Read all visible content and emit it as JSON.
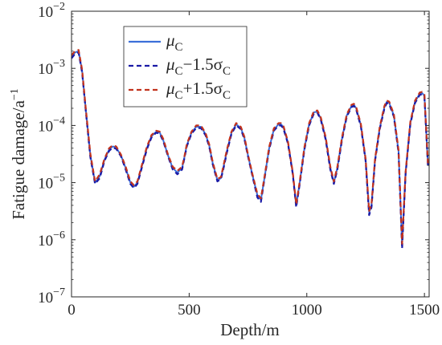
{
  "chart_data": {
    "type": "line",
    "xlabel": "Depth/m",
    "ylabel": "Fatigue damage/a",
    "ylabel_sup": "−1",
    "xlim": [
      0,
      1520
    ],
    "ylim": [
      1e-07,
      0.01
    ],
    "yscale": "log",
    "xticks": [
      0,
      500,
      1000,
      1500
    ],
    "xtick_labels": [
      "0",
      "500",
      "1000",
      "1500"
    ],
    "yticks": [
      1e-07,
      1e-06,
      1e-05,
      0.0001,
      0.001,
      0.01
    ],
    "ytick_labels": [
      {
        "base": "10",
        "exp": "−7"
      },
      {
        "base": "10",
        "exp": "−6"
      },
      {
        "base": "10",
        "exp": "−5"
      },
      {
        "base": "10",
        "exp": "−4"
      },
      {
        "base": "10",
        "exp": "−3"
      },
      {
        "base": "10",
        "exp": "−2"
      }
    ],
    "grid": false,
    "legend_position": "top-left",
    "x": [
      0,
      15,
      30,
      45,
      60,
      80,
      100,
      120,
      140,
      160,
      175,
      190,
      210,
      230,
      250,
      265,
      280,
      300,
      320,
      340,
      360,
      375,
      390,
      410,
      430,
      450,
      470,
      480,
      490,
      510,
      530,
      550,
      570,
      585,
      600,
      620,
      635,
      645,
      660,
      680,
      700,
      720,
      735,
      750,
      770,
      790,
      805,
      820,
      840,
      860,
      880,
      890,
      900,
      920,
      940,
      955,
      970,
      990,
      1010,
      1030,
      1045,
      1060,
      1080,
      1100,
      1115,
      1130,
      1150,
      1170,
      1190,
      1200,
      1210,
      1230,
      1250,
      1265,
      1275,
      1290,
      1310,
      1330,
      1340,
      1350,
      1370,
      1390,
      1405,
      1420,
      1440,
      1460,
      1480,
      1490,
      1500,
      1515
    ],
    "series": [
      {
        "name": "μC",
        "style": "solid",
        "color": "#3b6fd9",
        "values": [
          0.0016,
          0.0019,
          0.002,
          0.0009,
          0.0002,
          3e-05,
          1e-05,
          1.3e-05,
          2.5e-05,
          3.8e-05,
          4.3e-05,
          4.1e-05,
          3e-05,
          1.8e-05,
          1e-05,
          8.5e-06,
          1e-05,
          2e-05,
          4e-05,
          6.5e-05,
          7.8e-05,
          7.5e-05,
          5.5e-05,
          3e-05,
          1.8e-05,
          1.5e-05,
          1.8e-05,
          2.8e-05,
          4.5e-05,
          7.5e-05,
          9.5e-05,
          9.5e-05,
          7e-05,
          4.5e-05,
          2.2e-05,
          1.1e-05,
          1.2e-05,
          1.8e-05,
          3.5e-05,
          7.5e-05,
          0.000105,
          9e-05,
          6e-05,
          3e-05,
          1.3e-05,
          6e-06,
          5e-06,
          1.2e-05,
          4e-05,
          8.5e-05,
          0.000105,
          0.000105,
          9.5e-05,
          5e-05,
          1.5e-05,
          4e-06,
          1e-05,
          4e-05,
          0.000105,
          0.00017,
          0.000175,
          0.00013,
          6e-05,
          1.8e-05,
          1e-05,
          1.8e-05,
          6e-05,
          0.00015,
          0.00022,
          0.00023,
          0.0002,
          0.0001,
          2.5e-05,
          3e-06,
          4e-06,
          2.5e-05,
          9e-05,
          0.00021,
          0.00026,
          0.00025,
          0.00015,
          3.5e-05,
          8e-07,
          1.5e-05,
          0.00011,
          0.00026,
          0.00036,
          0.00037,
          0.00033,
          2e-05
        ]
      },
      {
        "name": "μC−1.5σC",
        "style": "dashed",
        "color": "#1a1aa6",
        "values": [
          0.0015,
          0.0018,
          0.0019,
          0.00085,
          0.00019,
          2.8e-05,
          9.5e-06,
          1.2e-05,
          2.4e-05,
          3.6e-05,
          4.1e-05,
          3.9e-05,
          2.9e-05,
          1.7e-05,
          9.5e-06,
          8e-06,
          9.5e-06,
          1.9e-05,
          3.8e-05,
          6.2e-05,
          7.5e-05,
          7.2e-05,
          5.3e-05,
          2.9e-05,
          1.7e-05,
          1.4e-05,
          1.7e-05,
          2.7e-05,
          4.3e-05,
          7.2e-05,
          9e-05,
          9e-05,
          6.7e-05,
          4.3e-05,
          2.1e-05,
          1.05e-05,
          1.15e-05,
          1.7e-05,
          3.3e-05,
          7.2e-05,
          0.0001,
          8.6e-05,
          5.7e-05,
          2.9e-05,
          1.25e-05,
          5.5e-06,
          4.6e-06,
          1.15e-05,
          3.8e-05,
          8.1e-05,
          0.0001,
          0.0001,
          9e-05,
          4.8e-05,
          1.45e-05,
          3.7e-06,
          9.5e-06,
          3.8e-05,
          0.0001,
          0.000162,
          0.000167,
          0.000124,
          5.7e-05,
          1.7e-05,
          9.5e-06,
          1.7e-05,
          5.7e-05,
          0.000143,
          0.00021,
          0.00022,
          0.00019,
          9.5e-05,
          2.4e-05,
          2.7e-06,
          3.7e-06,
          2.4e-05,
          8.6e-05,
          0.0002,
          0.000248,
          0.000238,
          0.000143,
          3.3e-05,
          7e-07,
          1.45e-05,
          0.000105,
          0.000248,
          0.000343,
          0.000353,
          0.000315,
          1.9e-05
        ]
      },
      {
        "name": "μC+1.5σC",
        "style": "dashed",
        "color": "#c2331e",
        "values": [
          0.0017,
          0.002,
          0.0021,
          0.00095,
          0.00021,
          3.2e-05,
          1.05e-05,
          1.4e-05,
          2.6e-05,
          4e-05,
          4.5e-05,
          4.3e-05,
          3.1e-05,
          1.9e-05,
          1.05e-05,
          9e-06,
          1.05e-05,
          2.1e-05,
          4.2e-05,
          6.8e-05,
          8.1e-05,
          7.8e-05,
          5.8e-05,
          3.1e-05,
          1.9e-05,
          1.6e-05,
          1.9e-05,
          2.9e-05,
          4.7e-05,
          7.8e-05,
          0.0001,
          0.0001,
          7.3e-05,
          4.7e-05,
          2.3e-05,
          1.15e-05,
          1.25e-05,
          1.9e-05,
          3.7e-05,
          7.8e-05,
          0.00011,
          9.4e-05,
          6.3e-05,
          3.1e-05,
          1.35e-05,
          6.3e-06,
          5.3e-06,
          1.25e-05,
          4.2e-05,
          8.9e-05,
          0.00011,
          0.00011,
          0.0001,
          5.2e-05,
          1.55e-05,
          4.2e-06,
          1.05e-05,
          4.2e-05,
          0.00011,
          0.000178,
          0.000183,
          0.000136,
          6.3e-05,
          1.9e-05,
          1.05e-05,
          1.9e-05,
          6.3e-05,
          0.000157,
          0.00023,
          0.00024,
          0.00021,
          0.000105,
          2.6e-05,
          3.2e-06,
          4.2e-06,
          2.6e-05,
          9.4e-05,
          0.00022,
          0.000272,
          0.000262,
          0.000157,
          3.7e-05,
          8.5e-07,
          1.55e-05,
          0.000115,
          0.000272,
          0.000377,
          0.000387,
          0.000345,
          2.1e-05
        ]
      }
    ],
    "legend": [
      {
        "sym": "μ",
        "sub": "C",
        "tail": ""
      },
      {
        "sym": "μ",
        "sub": "C",
        "tail": "−1.5σ",
        "tail_sub": "C"
      },
      {
        "sym": "μ",
        "sub": "C",
        "tail": "+1.5σ",
        "tail_sub": "C"
      }
    ]
  }
}
